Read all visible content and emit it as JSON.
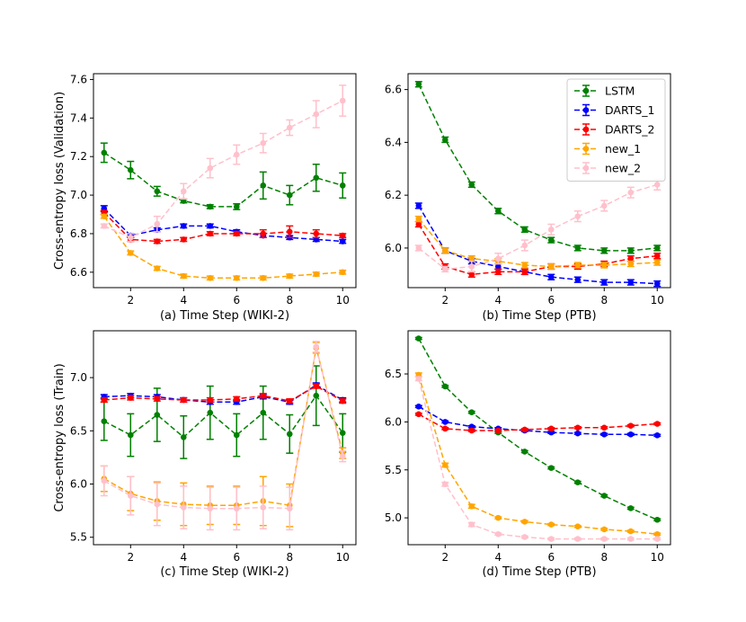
{
  "figure": {
    "legend_entries": [
      "LSTM",
      "DARTS_1",
      "DARTS_2",
      "new_1",
      "new_2"
    ]
  },
  "series_colors": {
    "LSTM": "#008000",
    "DARTS_1": "#0000ff",
    "DARTS_2": "#ff0000",
    "new_1": "#ffa500",
    "new_2": "#ffc0cb"
  },
  "chart_data": [
    {
      "type": "line",
      "panel": "top-left",
      "xlabel": "(a) Time Step (WIKI-2)",
      "ylabel": "Cross-entropy loss (Validation)",
      "x": [
        1,
        2,
        3,
        4,
        5,
        6,
        7,
        8,
        9,
        10
      ],
      "xlim": [
        0.6,
        10.5
      ],
      "ylim": [
        6.52,
        7.63
      ],
      "xticks": [
        2,
        4,
        6,
        8,
        10
      ],
      "yticks": [
        6.6,
        6.8,
        7.0,
        7.2,
        7.4,
        7.6
      ],
      "ytick_labels": [
        "6.6",
        "6.8",
        "7.0",
        "7.2",
        "7.4",
        "7.6"
      ],
      "legend": false,
      "series": [
        {
          "name": "LSTM",
          "values": [
            7.22,
            7.13,
            7.02,
            6.97,
            6.94,
            6.94,
            7.05,
            7.0,
            7.09,
            7.05
          ],
          "err": [
            0.05,
            0.045,
            0.025,
            0.01,
            0.01,
            0.015,
            0.07,
            0.05,
            0.07,
            0.065
          ]
        },
        {
          "name": "DARTS_1",
          "values": [
            6.93,
            6.79,
            6.82,
            6.84,
            6.84,
            6.81,
            6.79,
            6.78,
            6.77,
            6.76
          ],
          "err": [
            0.015,
            0.01,
            0.01,
            0.01,
            0.01,
            0.01,
            0.01,
            0.01,
            0.01,
            0.01
          ]
        },
        {
          "name": "DARTS_2",
          "values": [
            6.91,
            6.77,
            6.76,
            6.77,
            6.8,
            6.8,
            6.8,
            6.81,
            6.8,
            6.79
          ],
          "err": [
            0.01,
            0.01,
            0.01,
            0.01,
            0.01,
            0.01,
            0.02,
            0.03,
            0.02,
            0.01
          ]
        },
        {
          "name": "new_1",
          "values": [
            6.89,
            6.7,
            6.62,
            6.58,
            6.57,
            6.57,
            6.57,
            6.58,
            6.59,
            6.6
          ],
          "err": [
            0.01,
            0.01,
            0.01,
            0.01,
            0.01,
            0.01,
            0.01,
            0.01,
            0.01,
            0.01
          ]
        },
        {
          "name": "new_2",
          "values": [
            6.84,
            6.78,
            6.85,
            7.02,
            7.14,
            7.21,
            7.27,
            7.35,
            7.42,
            7.49
          ],
          "err": [
            0.01,
            0.02,
            0.04,
            0.04,
            0.05,
            0.05,
            0.05,
            0.04,
            0.07,
            0.08
          ]
        }
      ]
    },
    {
      "type": "line",
      "panel": "top-right",
      "xlabel": "(b) Time Step (PTB)",
      "ylabel": "",
      "x": [
        1,
        2,
        3,
        4,
        5,
        6,
        7,
        8,
        9,
        10
      ],
      "xlim": [
        0.6,
        10.5
      ],
      "ylim": [
        5.85,
        6.66
      ],
      "xticks": [
        2,
        4,
        6,
        8,
        10
      ],
      "yticks": [
        6.0,
        6.2,
        6.4,
        6.6
      ],
      "ytick_labels": [
        "6.0",
        "6.2",
        "6.4",
        "6.6"
      ],
      "legend": true,
      "legend_position": "top-right",
      "series": [
        {
          "name": "LSTM",
          "values": [
            6.62,
            6.41,
            6.24,
            6.14,
            6.07,
            6.03,
            6.0,
            5.99,
            5.99,
            6.0
          ],
          "err": [
            0.01,
            0.01,
            0.01,
            0.01,
            0.01,
            0.01,
            0.01,
            0.01,
            0.01,
            0.01
          ]
        },
        {
          "name": "DARTS_1",
          "values": [
            6.16,
            5.99,
            5.95,
            5.93,
            5.91,
            5.89,
            5.88,
            5.87,
            5.87,
            5.865
          ],
          "err": [
            0.01,
            0.01,
            0.01,
            0.01,
            0.01,
            0.01,
            0.01,
            0.01,
            0.01,
            0.01
          ]
        },
        {
          "name": "DARTS_2",
          "values": [
            6.09,
            5.93,
            5.9,
            5.91,
            5.91,
            5.93,
            5.93,
            5.94,
            5.96,
            5.97
          ],
          "err": [
            0.01,
            0.01,
            0.01,
            0.01,
            0.01,
            0.01,
            0.01,
            0.01,
            0.01,
            0.01
          ]
        },
        {
          "name": "new_1",
          "values": [
            6.11,
            5.99,
            5.96,
            5.95,
            5.935,
            5.93,
            5.935,
            5.935,
            5.94,
            5.945
          ],
          "err": [
            0.01,
            0.01,
            0.01,
            0.01,
            0.01,
            0.01,
            0.01,
            0.01,
            0.01,
            0.01
          ]
        },
        {
          "name": "new_2",
          "values": [
            6.0,
            5.92,
            5.93,
            5.96,
            6.01,
            6.07,
            6.12,
            6.16,
            6.21,
            6.24
          ],
          "err": [
            0.01,
            0.01,
            0.02,
            0.02,
            0.02,
            0.02,
            0.02,
            0.02,
            0.02,
            0.02
          ]
        }
      ]
    },
    {
      "type": "line",
      "panel": "bottom-left",
      "xlabel": "(c) Time Step (WIKI-2)",
      "ylabel": "Cross-entropy loss (Train)",
      "x": [
        1,
        2,
        3,
        4,
        5,
        6,
        7,
        8,
        9,
        10
      ],
      "xlim": [
        0.6,
        10.5
      ],
      "ylim": [
        5.43,
        7.44
      ],
      "xticks": [
        2,
        4,
        6,
        8,
        10
      ],
      "yticks": [
        5.5,
        6.0,
        6.5,
        7.0
      ],
      "ytick_labels": [
        "5.5",
        "6.0",
        "6.5",
        "7.0"
      ],
      "legend": false,
      "series": [
        {
          "name": "LSTM",
          "values": [
            6.59,
            6.46,
            6.65,
            6.44,
            6.67,
            6.46,
            6.67,
            6.47,
            6.83,
            6.48
          ],
          "err": [
            0.18,
            0.2,
            0.25,
            0.2,
            0.25,
            0.2,
            0.25,
            0.18,
            0.28,
            0.18
          ]
        },
        {
          "name": "DARTS_1",
          "values": [
            6.82,
            6.83,
            6.82,
            6.79,
            6.77,
            6.77,
            6.82,
            6.77,
            6.93,
            6.79
          ],
          "err": [
            0.02,
            0.02,
            0.02,
            0.02,
            0.02,
            0.02,
            0.02,
            0.02,
            0.02,
            0.02
          ]
        },
        {
          "name": "DARTS_2",
          "values": [
            6.79,
            6.81,
            6.8,
            6.79,
            6.79,
            6.8,
            6.83,
            6.78,
            6.92,
            6.78
          ],
          "err": [
            0.02,
            0.02,
            0.02,
            0.02,
            0.02,
            0.02,
            0.02,
            0.02,
            0.02,
            0.02
          ]
        },
        {
          "name": "new_1",
          "values": [
            6.05,
            5.91,
            5.84,
            5.81,
            5.8,
            5.8,
            5.84,
            5.8,
            7.28,
            6.29
          ],
          "err": [
            0.12,
            0.16,
            0.18,
            0.2,
            0.18,
            0.18,
            0.23,
            0.2,
            0.05,
            0.05
          ]
        },
        {
          "name": "new_2",
          "values": [
            6.03,
            5.89,
            5.81,
            5.78,
            5.77,
            5.77,
            5.78,
            5.77,
            7.29,
            6.26
          ],
          "err": [
            0.14,
            0.18,
            0.2,
            0.2,
            0.2,
            0.2,
            0.2,
            0.2,
            0.05,
            0.05
          ]
        }
      ]
    },
    {
      "type": "line",
      "panel": "bottom-right",
      "xlabel": "(d) Time Step (PTB)",
      "ylabel": "",
      "x": [
        1,
        2,
        3,
        4,
        5,
        6,
        7,
        8,
        9,
        10
      ],
      "xlim": [
        0.6,
        10.5
      ],
      "ylim": [
        4.72,
        6.95
      ],
      "xticks": [
        2,
        4,
        6,
        8,
        10
      ],
      "yticks": [
        5.0,
        5.5,
        6.0,
        6.5
      ],
      "ytick_labels": [
        "5.0",
        "5.5",
        "6.0",
        "6.5"
      ],
      "legend": false,
      "series": [
        {
          "name": "LSTM",
          "values": [
            6.87,
            6.37,
            6.1,
            5.89,
            5.69,
            5.52,
            5.37,
            5.23,
            5.1,
            4.98
          ],
          "err": [
            0.01,
            0.01,
            0.01,
            0.01,
            0.01,
            0.01,
            0.01,
            0.01,
            0.01,
            0.01
          ]
        },
        {
          "name": "DARTS_1",
          "values": [
            6.16,
            6.0,
            5.95,
            5.93,
            5.91,
            5.89,
            5.88,
            5.87,
            5.87,
            5.86
          ],
          "err": [
            0.01,
            0.01,
            0.01,
            0.01,
            0.01,
            0.01,
            0.01,
            0.01,
            0.01,
            0.01
          ]
        },
        {
          "name": "DARTS_2",
          "values": [
            6.08,
            5.93,
            5.91,
            5.91,
            5.92,
            5.93,
            5.94,
            5.94,
            5.96,
            5.98
          ],
          "err": [
            0.01,
            0.01,
            0.01,
            0.01,
            0.01,
            0.01,
            0.01,
            0.01,
            0.01,
            0.01
          ]
        },
        {
          "name": "new_1",
          "values": [
            6.49,
            5.55,
            5.12,
            5.0,
            4.96,
            4.93,
            4.91,
            4.88,
            4.86,
            4.83
          ],
          "err": [
            0.02,
            0.02,
            0.02,
            0.01,
            0.01,
            0.01,
            0.01,
            0.01,
            0.01,
            0.01
          ]
        },
        {
          "name": "new_2",
          "values": [
            6.45,
            5.35,
            4.93,
            4.83,
            4.8,
            4.78,
            4.78,
            4.78,
            4.78,
            4.78
          ],
          "err": [
            0.02,
            0.02,
            0.02,
            0.01,
            0.01,
            0.01,
            0.01,
            0.01,
            0.01,
            0.01
          ]
        }
      ]
    }
  ]
}
